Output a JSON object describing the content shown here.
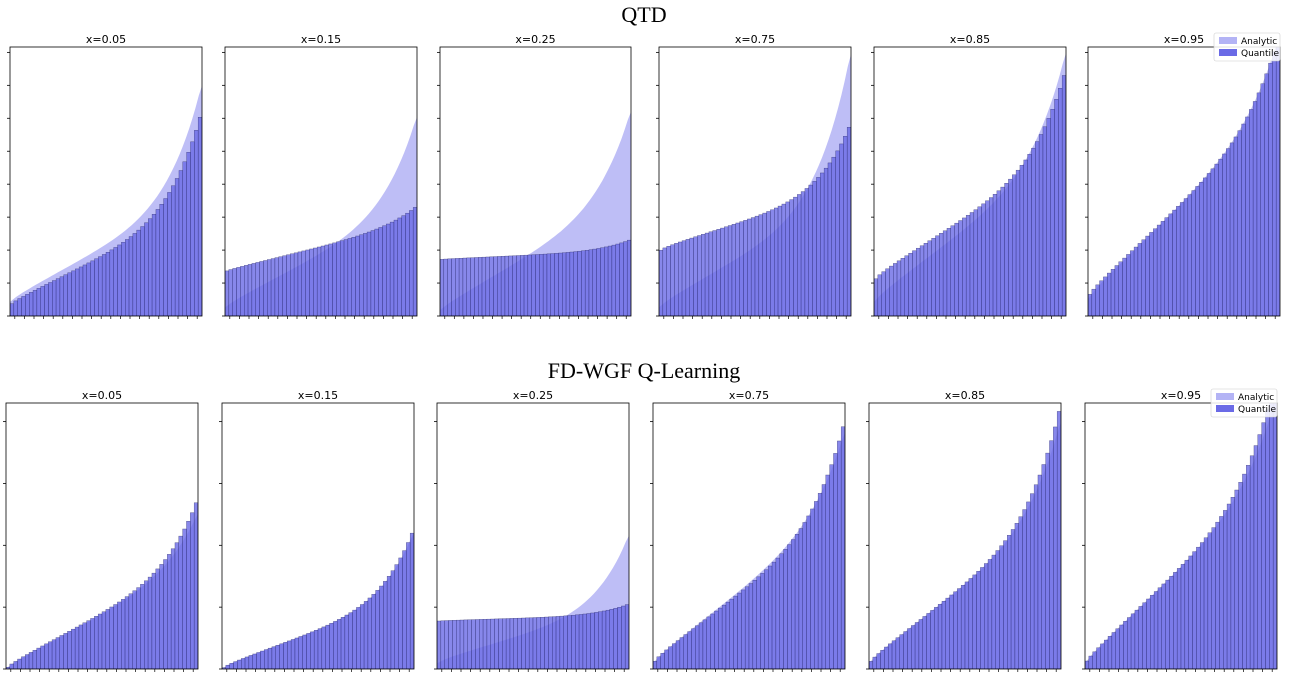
{
  "figure": {
    "rows": [
      {
        "title": "QTD"
      },
      {
        "title": "FD-WGF Q-Learning"
      }
    ],
    "legend": {
      "analytic": "Analytic",
      "quantile": "Quantile"
    },
    "colors": {
      "analytic_fill": "#b3b3f5",
      "quantile_fill": "#6a6ae6",
      "bar_edge": "#1a1a5a",
      "axes": "#000000"
    }
  },
  "chart_data": [
    {
      "type": "area+bar",
      "row": "QTD",
      "title": "x=0.05",
      "n_quantiles": 50,
      "legend": "none",
      "analytic": [
        0.05,
        0.37,
        0.05,
        0.4
      ],
      "quantile": [
        0.04,
        0.34,
        0.035,
        0.35
      ]
    },
    {
      "type": "area+bar",
      "row": "QTD",
      "title": "x=0.15",
      "n_quantiles": 50,
      "legend": "none",
      "analytic": [
        0.03,
        0.36,
        0.04,
        0.32
      ],
      "quantile": [
        0.165,
        0.17,
        0.015,
        0.06
      ]
    },
    {
      "type": "area+bar",
      "row": "QTD",
      "title": "x=0.25",
      "n_quantiles": 50,
      "legend": "none",
      "analytic": [
        0.02,
        0.4,
        0.04,
        0.31
      ],
      "quantile": [
        0.21,
        0.03,
        0.005,
        0.04
      ]
    },
    {
      "type": "area+bar",
      "row": "QTD",
      "title": "x=0.75",
      "n_quantiles": 50,
      "legend": "none",
      "analytic": [
        0.03,
        0.39,
        0.05,
        0.52
      ],
      "quantile": [
        0.24,
        0.21,
        0.04,
        0.23
      ]
    },
    {
      "type": "area+bar",
      "row": "QTD",
      "title": "x=0.85",
      "n_quantiles": 50,
      "legend": "none",
      "analytic": [
        0.05,
        0.51,
        0.06,
        0.37
      ],
      "quantile": [
        0.13,
        0.43,
        0.06,
        0.3
      ]
    },
    {
      "type": "area+bar",
      "row": "QTD",
      "title": "x=0.95",
      "n_quantiles": 50,
      "legend": "top-right",
      "analytic": [
        0.06,
        0.67,
        0.06,
        0.27
      ],
      "quantile": [
        0.07,
        0.65,
        0.06,
        0.28
      ]
    },
    {
      "type": "area+bar",
      "row": "FD-WGF Q-Learning",
      "title": "x=0.05",
      "n_quantiles": 50,
      "legend": "none",
      "analytic": [
        0.0,
        0.37,
        0.04,
        0.18
      ],
      "quantile": [
        0.0,
        0.37,
        0.045,
        0.23
      ]
    },
    {
      "type": "area+bar",
      "row": "FD-WGF Q-Learning",
      "title": "x=0.15",
      "n_quantiles": 50,
      "legend": "none",
      "analytic": [
        0.0,
        0.25,
        0.04,
        0.23
      ],
      "quantile": [
        0.0,
        0.25,
        0.04,
        0.24
      ]
    },
    {
      "type": "area+bar",
      "row": "FD-WGF Q-Learning",
      "title": "x=0.25",
      "n_quantiles": 50,
      "legend": "none",
      "analytic": [
        0.02,
        0.2,
        0.04,
        0.25
      ],
      "quantile": [
        0.18,
        0.02,
        0.005,
        0.04
      ]
    },
    {
      "type": "area+bar",
      "row": "FD-WGF Q-Learning",
      "title": "x=0.75",
      "n_quantiles": 50,
      "legend": "none",
      "analytic": [
        0.02,
        0.55,
        0.05,
        0.28
      ],
      "quantile": [
        0.02,
        0.52,
        0.06,
        0.34
      ]
    },
    {
      "type": "area+bar",
      "row": "FD-WGF Q-Learning",
      "title": "x=0.85",
      "n_quantiles": 50,
      "legend": "none",
      "analytic": [
        0.02,
        0.54,
        0.05,
        0.33
      ],
      "quantile": [
        0.02,
        0.54,
        0.05,
        0.39
      ]
    },
    {
      "type": "area+bar",
      "row": "FD-WGF Q-Learning",
      "title": "x=0.95",
      "n_quantiles": 50,
      "legend": "top-right",
      "analytic": [
        0.02,
        0.67,
        0.05,
        0.3
      ],
      "quantile": [
        0.02,
        0.67,
        0.05,
        0.38
      ]
    }
  ]
}
